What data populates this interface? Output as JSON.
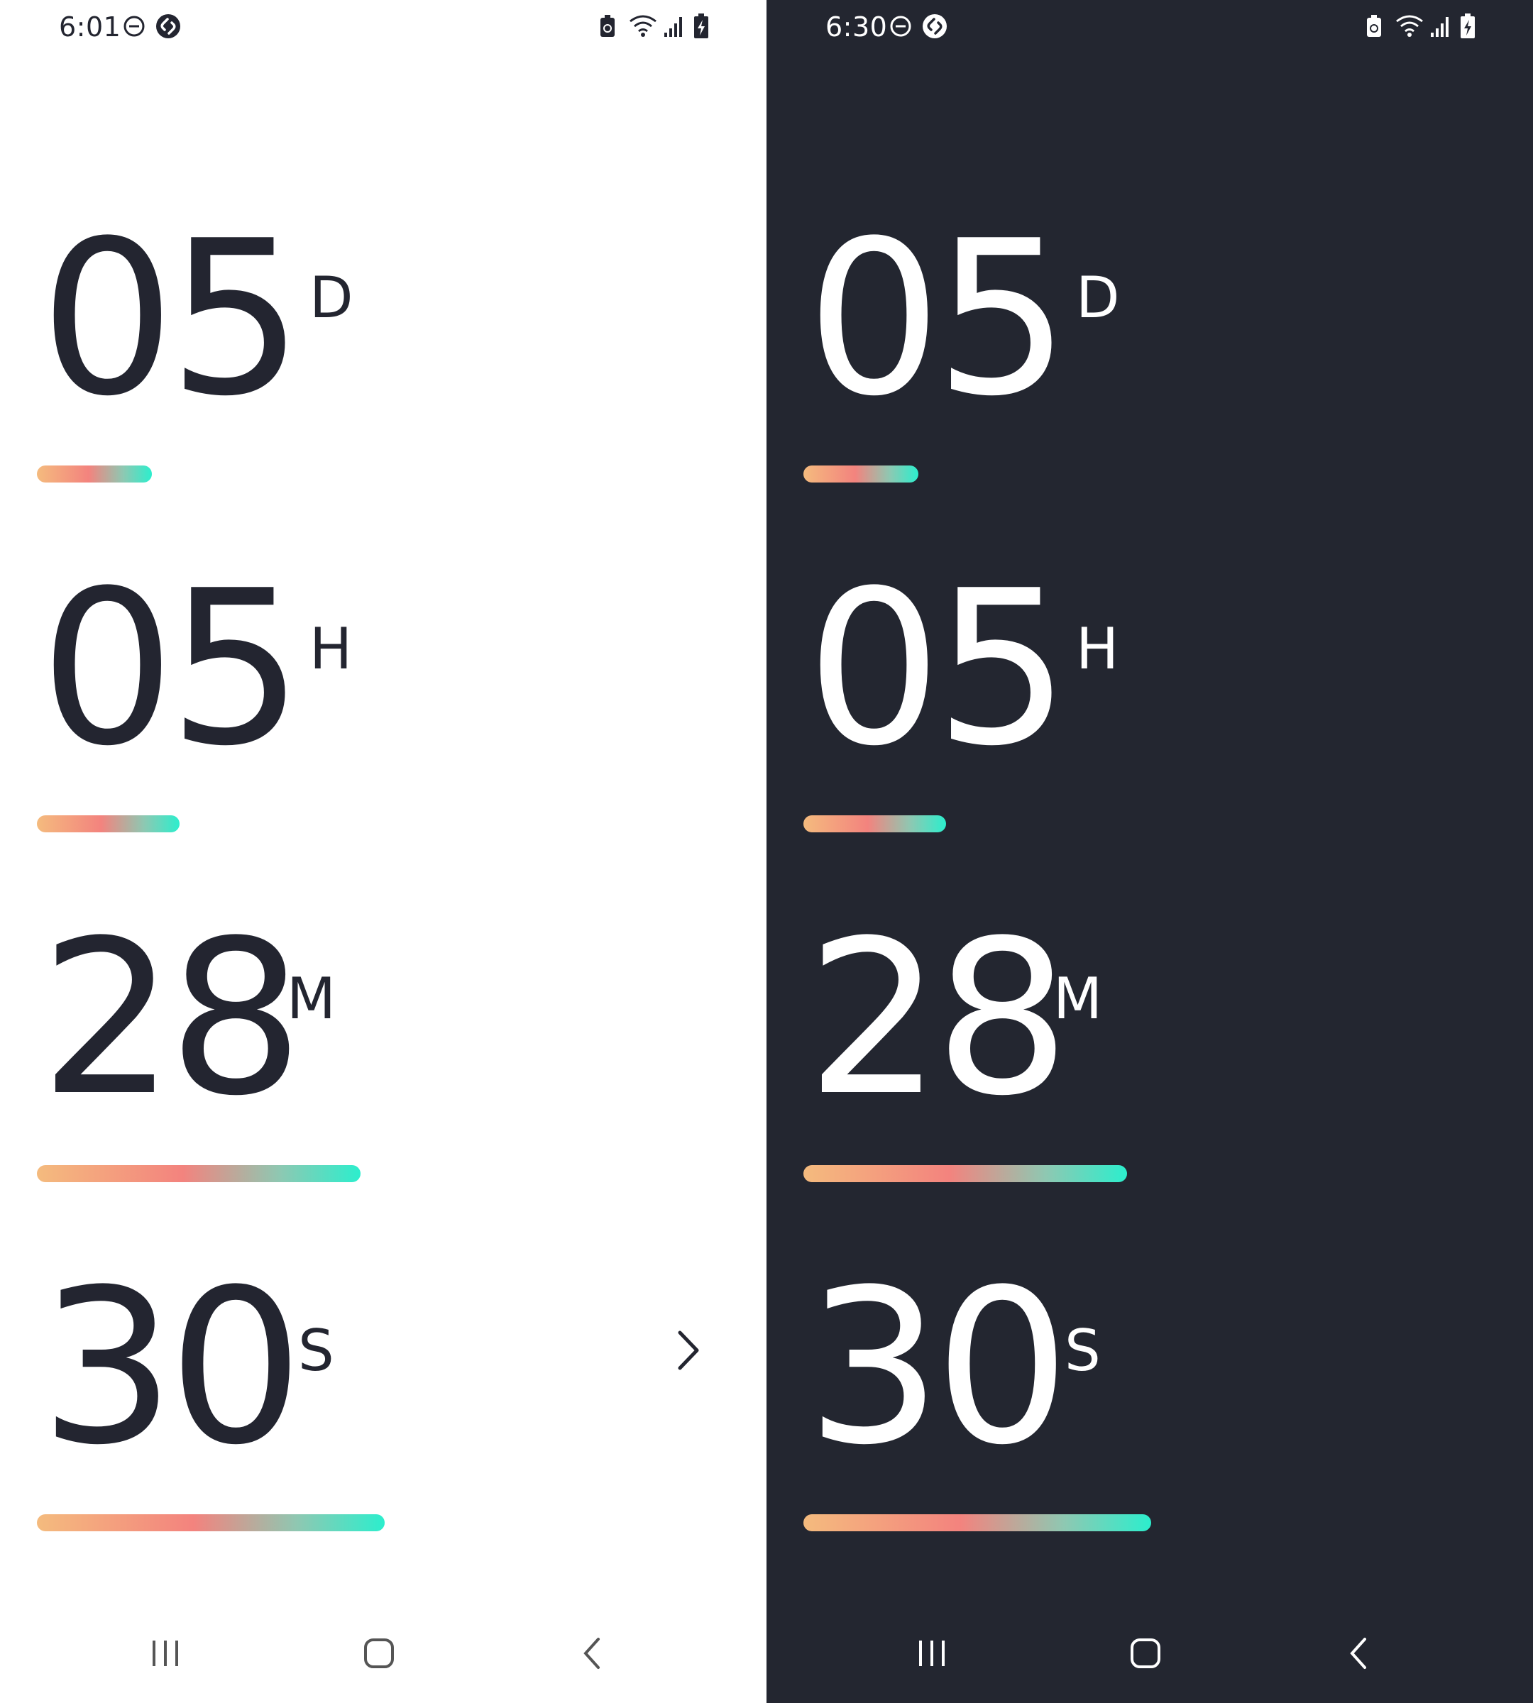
{
  "light": {
    "status": {
      "time": "6:01"
    },
    "units": [
      {
        "value": "05",
        "unit": "D",
        "fill": 0.33
      },
      {
        "value": "05",
        "unit": "H",
        "fill": 0.41
      },
      {
        "value": "28",
        "unit": "M",
        "fill": 0.93
      },
      {
        "value": "30",
        "unit": "S",
        "fill": 1.0
      }
    ]
  },
  "dark": {
    "status": {
      "time": "6:30"
    },
    "units": [
      {
        "value": "05",
        "unit": "D",
        "fill": 0.33
      },
      {
        "value": "05",
        "unit": "H",
        "fill": 0.41
      },
      {
        "value": "28",
        "unit": "M",
        "fill": 0.93
      },
      {
        "value": "30",
        "unit": "S",
        "fill": 1.0
      }
    ]
  },
  "icons": {
    "status_left": [
      "do-not-disturb-icon",
      "shazam-icon"
    ],
    "status_right": [
      "battery-saver-icon",
      "wifi-icon",
      "signal-icon",
      "battery-charging-icon"
    ],
    "nav": [
      "recent-apps-icon",
      "home-icon",
      "back-icon"
    ],
    "next": "chevron-right-icon"
  },
  "colors": {
    "light_bg": "#ffffff",
    "light_text": "#232530",
    "dark_bg": "#232630",
    "dark_text": "#ffffff",
    "gradient": [
      "#f4bb7e",
      "#f3837e",
      "#8ec8b2",
      "#2ceecd"
    ]
  }
}
